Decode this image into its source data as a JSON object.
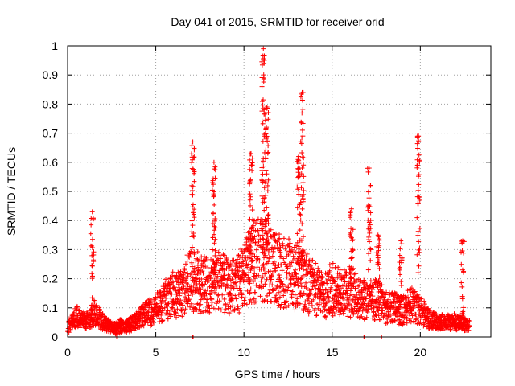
{
  "chart_data": {
    "type": "scatter",
    "title": "Day 041 of 2015, SRMTID for receiver orid",
    "xlabel": "GPS time / hours",
    "ylabel": "SRMTID / TECUs",
    "xlim": [
      0,
      24
    ],
    "ylim": [
      0,
      1
    ],
    "x_ticks": [
      0,
      5,
      10,
      15,
      20
    ],
    "x_tick_labels": [
      "0",
      "5",
      "10",
      "15",
      "20"
    ],
    "y_ticks": [
      0,
      0.1,
      0.2,
      0.3,
      0.4,
      0.5,
      0.6,
      0.7,
      0.8,
      0.9,
      1
    ],
    "y_tick_labels": [
      "0",
      "0.1",
      "0.2",
      "0.3",
      "0.4",
      "0.5",
      "0.6",
      "0.7",
      "0.8",
      "0.9",
      "1"
    ],
    "grid": true,
    "marker": "+",
    "color": "#ff0000",
    "envelope": {
      "description": "approximate typical SRMTID level (TECU) vs GPS hour",
      "hours": [
        0,
        0.5,
        1,
        1.5,
        2,
        2.5,
        3,
        3.5,
        4,
        4.5,
        5,
        5.5,
        6,
        6.5,
        7,
        7.5,
        8,
        8.5,
        9,
        9.5,
        10,
        10.5,
        11,
        11.5,
        12,
        12.5,
        13,
        13.5,
        14,
        14.5,
        15,
        15.5,
        16,
        16.5,
        17,
        17.5,
        18,
        18.5,
        19,
        19.5,
        20,
        20.5,
        21,
        21.5,
        22,
        22.5,
        22.8
      ],
      "level": [
        0.03,
        0.07,
        0.05,
        0.08,
        0.05,
        0.03,
        0.03,
        0.04,
        0.06,
        0.08,
        0.09,
        0.12,
        0.14,
        0.15,
        0.2,
        0.18,
        0.17,
        0.19,
        0.18,
        0.17,
        0.2,
        0.25,
        0.27,
        0.25,
        0.22,
        0.22,
        0.2,
        0.18,
        0.16,
        0.14,
        0.16,
        0.15,
        0.15,
        0.14,
        0.12,
        0.13,
        0.1,
        0.1,
        0.09,
        0.11,
        0.09,
        0.06,
        0.05,
        0.05,
        0.05,
        0.04,
        0.04
      ]
    },
    "spikes": [
      {
        "x": 1.4,
        "peak": 0.43
      },
      {
        "x": 3.0,
        "peak": 0.06
      },
      {
        "x": 7.1,
        "peak": 0.67
      },
      {
        "x": 8.3,
        "peak": 0.6
      },
      {
        "x": 10.4,
        "peak": 0.63
      },
      {
        "x": 11.1,
        "peak": 0.99
      },
      {
        "x": 11.3,
        "peak": 0.79
      },
      {
        "x": 13.3,
        "peak": 0.84
      },
      {
        "x": 13.1,
        "peak": 0.62
      },
      {
        "x": 16.1,
        "peak": 0.44
      },
      {
        "x": 17.1,
        "peak": 0.58
      },
      {
        "x": 17.6,
        "peak": 0.35
      },
      {
        "x": 18.9,
        "peak": 0.33
      },
      {
        "x": 19.9,
        "peak": 0.69
      },
      {
        "x": 22.4,
        "peak": 0.33
      }
    ],
    "zero_points_hours": [
      2.8,
      7.1,
      16.8,
      17.8
    ]
  }
}
